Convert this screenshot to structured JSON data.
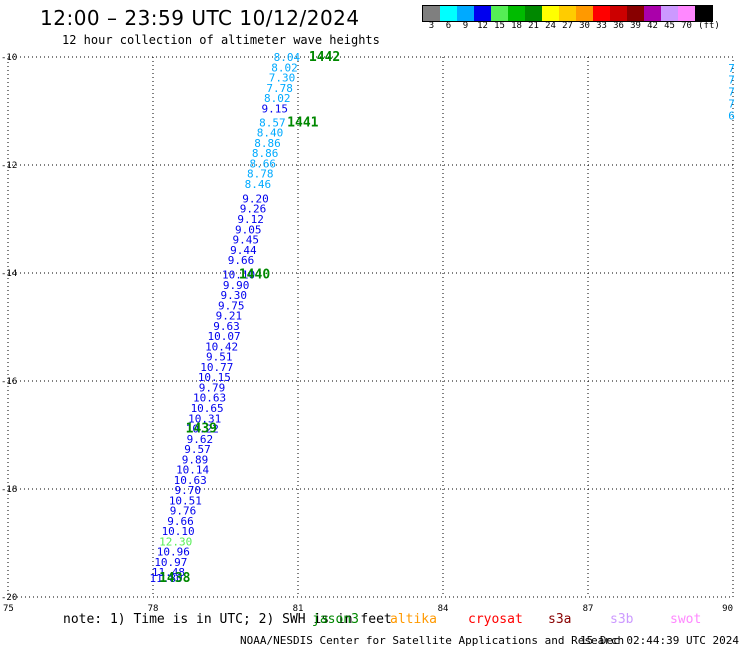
{
  "header": {
    "title": "12:00 – 23:59 UTC 10/12/2024",
    "subtitle": "12 hour collection of altimeter wave heights"
  },
  "legend": {
    "unit": "(ft)",
    "bins": [
      {
        "label": "3",
        "color": "#7f7f7f"
      },
      {
        "label": "6",
        "color": "#00ffff"
      },
      {
        "label": "9",
        "color": "#00aaff"
      },
      {
        "label": "12",
        "color": "#0000ee"
      },
      {
        "label": "15",
        "color": "#55ee55"
      },
      {
        "label": "18",
        "color": "#00bb00"
      },
      {
        "label": "21",
        "color": "#008800"
      },
      {
        "label": "24",
        "color": "#ffff00"
      },
      {
        "label": "27",
        "color": "#ffcc00"
      },
      {
        "label": "30",
        "color": "#ff9900"
      },
      {
        "label": "33",
        "color": "#ff0000"
      },
      {
        "label": "36",
        "color": "#cc0000"
      },
      {
        "label": "39",
        "color": "#880000"
      },
      {
        "label": "42",
        "color": "#aa00aa"
      },
      {
        "label": "45",
        "color": "#cc99ff"
      },
      {
        "label": "70",
        "color": "#ff88ff"
      },
      {
        "label": "",
        "color": "#000000"
      }
    ]
  },
  "note": {
    "text": "note: 1) Time is in UTC; 2) SWH is in feet",
    "satellites": [
      {
        "name": "jason3",
        "color": "#008800"
      },
      {
        "name": "altika",
        "color": "#ff9900"
      },
      {
        "name": "cryosat",
        "color": "#ff0000"
      },
      {
        "name": "s3a",
        "color": "#880000"
      },
      {
        "name": "s3b",
        "color": "#cc99ff"
      },
      {
        "name": "swot",
        "color": "#ff88ff"
      }
    ]
  },
  "footer": {
    "credit": "NOAA/NESDIS Center for Satellite Applications and Research",
    "timestamp": "15 Dec 02:44:39 UTC 2024"
  },
  "chart_data": {
    "type": "scatter",
    "xlabel": "",
    "ylabel": "",
    "xlim": [
      75,
      90
    ],
    "ylim": [
      -20,
      -10
    ],
    "x_ticks": [
      75,
      78,
      81,
      84,
      87,
      90
    ],
    "y_ticks": [
      -10,
      -12,
      -14,
      -16,
      -18,
      -20
    ],
    "grid": true,
    "series": [
      {
        "points": [
          {
            "x": 80.77,
            "y": -10.0,
            "v": "8.04",
            "color": "#00aaff"
          },
          {
            "x": 80.72,
            "y": -10.19,
            "v": "8.02",
            "color": "#00aaff"
          },
          {
            "x": 80.67,
            "y": -10.38,
            "v": "7.30",
            "color": "#00aaff"
          },
          {
            "x": 80.62,
            "y": -10.57,
            "v": "7.78",
            "color": "#00aaff"
          },
          {
            "x": 80.57,
            "y": -10.76,
            "v": "8.02",
            "color": "#00aaff"
          },
          {
            "x": 80.52,
            "y": -10.95,
            "v": "9.15",
            "color": "#0000ee"
          },
          {
            "x": 80.47,
            "y": -11.21,
            "v": "8.57",
            "color": "#00aaff"
          },
          {
            "x": 80.42,
            "y": -11.4,
            "v": "8.40",
            "color": "#00aaff"
          },
          {
            "x": 80.37,
            "y": -11.59,
            "v": "8.86",
            "color": "#00aaff"
          },
          {
            "x": 80.32,
            "y": -11.78,
            "v": "8.86",
            "color": "#00aaff"
          },
          {
            "x": 80.27,
            "y": -11.97,
            "v": "8.66",
            "color": "#00aaff"
          },
          {
            "x": 80.22,
            "y": -12.16,
            "v": "8.78",
            "color": "#00aaff"
          },
          {
            "x": 80.17,
            "y": -12.35,
            "v": "8.46",
            "color": "#00aaff"
          },
          {
            "x": 80.12,
            "y": -12.62,
            "v": "9.20",
            "color": "#0000ee"
          },
          {
            "x": 80.07,
            "y": -12.81,
            "v": "9.26",
            "color": "#0000ee"
          },
          {
            "x": 80.02,
            "y": -13.0,
            "v": "9.12",
            "color": "#0000ee"
          },
          {
            "x": 79.97,
            "y": -13.19,
            "v": "9.05",
            "color": "#0000ee"
          },
          {
            "x": 79.92,
            "y": -13.38,
            "v": "9.45",
            "color": "#0000ee"
          },
          {
            "x": 79.87,
            "y": -13.57,
            "v": "9.44",
            "color": "#0000ee"
          },
          {
            "x": 79.82,
            "y": -13.76,
            "v": "9.66",
            "color": "#0000ee"
          },
          {
            "x": 79.77,
            "y": -14.03,
            "v": "10.10",
            "color": "#0000ee"
          },
          {
            "x": 79.72,
            "y": -14.22,
            "v": "9.90",
            "color": "#0000ee"
          },
          {
            "x": 79.67,
            "y": -14.41,
            "v": "9.30",
            "color": "#0000ee"
          },
          {
            "x": 79.62,
            "y": -14.6,
            "v": "9.75",
            "color": "#0000ee"
          },
          {
            "x": 79.57,
            "y": -14.79,
            "v": "9.21",
            "color": "#0000ee"
          },
          {
            "x": 79.52,
            "y": -14.98,
            "v": "9.63",
            "color": "#0000ee"
          },
          {
            "x": 79.47,
            "y": -15.17,
            "v": "10.07",
            "color": "#0000ee"
          },
          {
            "x": 79.42,
            "y": -15.36,
            "v": "10.42",
            "color": "#0000ee"
          },
          {
            "x": 79.37,
            "y": -15.55,
            "v": "9.51",
            "color": "#0000ee"
          },
          {
            "x": 79.32,
            "y": -15.74,
            "v": "10.77",
            "color": "#0000ee"
          },
          {
            "x": 79.27,
            "y": -15.93,
            "v": "10.15",
            "color": "#0000ee"
          },
          {
            "x": 79.22,
            "y": -16.12,
            "v": "9.79",
            "color": "#0000ee"
          },
          {
            "x": 79.17,
            "y": -16.31,
            "v": "10.63",
            "color": "#0000ee"
          },
          {
            "x": 79.12,
            "y": -16.5,
            "v": "10.65",
            "color": "#0000ee"
          },
          {
            "x": 79.07,
            "y": -16.69,
            "v": "10.31",
            "color": "#0000ee"
          },
          {
            "x": 79.02,
            "y": -16.88,
            "v": "10.22",
            "color": "#0000ee"
          },
          {
            "x": 78.97,
            "y": -17.07,
            "v": "9.62",
            "color": "#0000ee"
          },
          {
            "x": 78.92,
            "y": -17.26,
            "v": "9.57",
            "color": "#0000ee"
          },
          {
            "x": 78.87,
            "y": -17.45,
            "v": "9.89",
            "color": "#0000ee"
          },
          {
            "x": 78.82,
            "y": -17.64,
            "v": "10.14",
            "color": "#0000ee"
          },
          {
            "x": 78.77,
            "y": -17.83,
            "v": "10.63",
            "color": "#0000ee"
          },
          {
            "x": 78.72,
            "y": -18.02,
            "v": "9.70",
            "color": "#0000ee"
          },
          {
            "x": 78.67,
            "y": -18.21,
            "v": "10.51",
            "color": "#0000ee"
          },
          {
            "x": 78.62,
            "y": -18.4,
            "v": "9.76",
            "color": "#0000ee"
          },
          {
            "x": 78.57,
            "y": -18.59,
            "v": "9.66",
            "color": "#0000ee"
          },
          {
            "x": 78.52,
            "y": -18.78,
            "v": "10.10",
            "color": "#0000ee"
          },
          {
            "x": 78.47,
            "y": -18.97,
            "v": "12.30",
            "color": "#55ee55"
          },
          {
            "x": 78.42,
            "y": -19.16,
            "v": "10.96",
            "color": "#0000ee"
          },
          {
            "x": 78.37,
            "y": -19.35,
            "v": "10.97",
            "color": "#0000ee"
          },
          {
            "x": 78.32,
            "y": -19.54,
            "v": "11.48",
            "color": "#0000ee"
          },
          {
            "x": 78.27,
            "y": -19.65,
            "v": "11.80",
            "color": "#0000ee"
          }
        ]
      },
      {
        "points": [
          {
            "x": 89.97,
            "y": -10.2,
            "v": "7",
            "color": "#00aaff"
          },
          {
            "x": 89.97,
            "y": -10.42,
            "v": "7",
            "color": "#00aaff"
          },
          {
            "x": 89.97,
            "y": -10.64,
            "v": "7",
            "color": "#00aaff"
          },
          {
            "x": 89.97,
            "y": -10.86,
            "v": "7",
            "color": "#00aaff"
          },
          {
            "x": 89.97,
            "y": -11.08,
            "v": "6",
            "color": "#00aaff"
          }
        ]
      }
    ],
    "time_labels": [
      {
        "x": 81.55,
        "y": -10.0,
        "text": "1442"
      },
      {
        "x": 81.1,
        "y": -11.21,
        "text": "1441"
      },
      {
        "x": 80.1,
        "y": -14.03,
        "text": "1440"
      },
      {
        "x": 79.0,
        "y": -16.88,
        "text": "1439"
      },
      {
        "x": 78.45,
        "y": -19.65,
        "text": "1438"
      }
    ]
  }
}
